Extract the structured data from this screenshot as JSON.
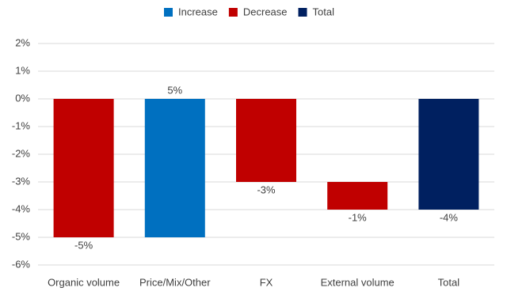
{
  "chart_data": {
    "type": "waterfall",
    "categories": [
      "Organic volume",
      "Price/Mix/Other",
      "FX",
      "External volume",
      "Total"
    ],
    "values": [
      -5,
      5,
      -3,
      -1,
      -4
    ],
    "value_labels": [
      "-5%",
      "5%",
      "-3%",
      "-1%",
      "-4%"
    ],
    "legend": [
      {
        "name": "Increase",
        "color": "#0070c0"
      },
      {
        "name": "Decrease",
        "color": "#c00000"
      },
      {
        "name": "Total",
        "color": "#002060"
      }
    ],
    "ylim": [
      -6,
      2
    ],
    "yticks": [
      {
        "value": -6,
        "label": "-6%"
      },
      {
        "value": -5,
        "label": "-5%"
      },
      {
        "value": -4,
        "label": "-4%"
      },
      {
        "value": -3,
        "label": "-3%"
      },
      {
        "value": -2,
        "label": "-2%"
      },
      {
        "value": -1,
        "label": "-1%"
      },
      {
        "value": 0,
        "label": "0%"
      },
      {
        "value": 1,
        "label": "1%"
      },
      {
        "value": 2,
        "label": "2%"
      }
    ],
    "grid": true
  }
}
